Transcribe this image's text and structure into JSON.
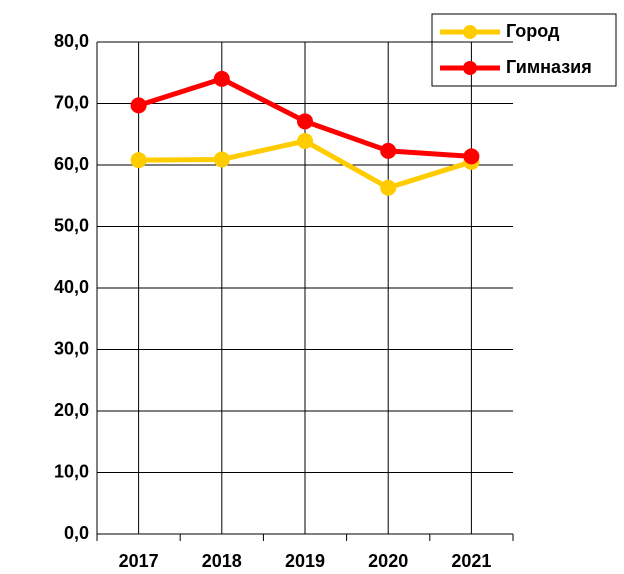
{
  "chart_data": {
    "type": "line",
    "categories": [
      "2017",
      "2018",
      "2019",
      "2020",
      "2021"
    ],
    "series": [
      {
        "name": "Город",
        "color": "#ffcc00",
        "values": [
          60.8,
          60.9,
          63.9,
          56.3,
          60.5
        ]
      },
      {
        "name": "Гимназия",
        "color": "#ff0000",
        "values": [
          69.7,
          74.0,
          67.1,
          62.3,
          61.4
        ]
      }
    ],
    "ylim": [
      0,
      80
    ],
    "yticks": [
      {
        "value": 0,
        "label": "0,0"
      },
      {
        "value": 10,
        "label": "10,0"
      },
      {
        "value": 20,
        "label": "20,0"
      },
      {
        "value": 30,
        "label": "30,0"
      },
      {
        "value": 40,
        "label": "40,0"
      },
      {
        "value": 50,
        "label": "50,0"
      },
      {
        "value": 60,
        "label": "60,0"
      },
      {
        "value": 70,
        "label": "70,0"
      },
      {
        "value": 80,
        "label": "80,0"
      }
    ],
    "grid": true,
    "legend": "top-right"
  }
}
